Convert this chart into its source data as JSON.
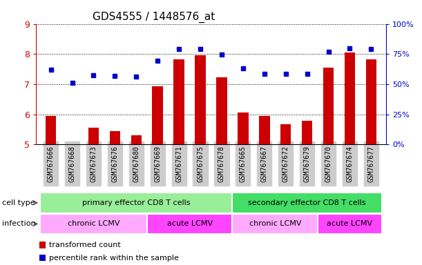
{
  "title": "GDS4555 / 1448576_at",
  "samples": [
    "GSM767666",
    "GSM767668",
    "GSM767673",
    "GSM767676",
    "GSM767680",
    "GSM767669",
    "GSM767671",
    "GSM767675",
    "GSM767678",
    "GSM767665",
    "GSM767667",
    "GSM767672",
    "GSM767679",
    "GSM767670",
    "GSM767674",
    "GSM767677"
  ],
  "red_values": [
    5.95,
    5.0,
    5.55,
    5.45,
    5.3,
    6.92,
    7.82,
    7.97,
    7.22,
    6.07,
    5.94,
    5.68,
    5.78,
    7.55,
    8.05,
    7.82
  ],
  "blue_values": [
    7.48,
    7.05,
    7.3,
    7.27,
    7.25,
    7.77,
    8.17,
    8.17,
    7.98,
    7.52,
    7.35,
    7.35,
    7.35,
    8.07,
    8.2,
    8.17
  ],
  "ylim_left": [
    5,
    9
  ],
  "ylim_right": [
    0,
    100
  ],
  "yticks_left": [
    5,
    6,
    7,
    8,
    9
  ],
  "ytick_right_vals": [
    0,
    25,
    50,
    75,
    100
  ],
  "cell_type_groups": [
    {
      "label": "primary effector CD8 T cells",
      "start": 0,
      "end": 8,
      "color": "#99EE99"
    },
    {
      "label": "secondary effector CD8 T cells",
      "start": 9,
      "end": 15,
      "color": "#44DD66"
    }
  ],
  "infection_groups": [
    {
      "label": "chronic LCMV",
      "start": 0,
      "end": 4,
      "color": "#FFAAFF"
    },
    {
      "label": "acute LCMV",
      "start": 5,
      "end": 8,
      "color": "#FF44FF"
    },
    {
      "label": "chronic LCMV",
      "start": 9,
      "end": 12,
      "color": "#FFAAFF"
    },
    {
      "label": "acute LCMV",
      "start": 13,
      "end": 15,
      "color": "#FF44FF"
    }
  ],
  "red_color": "#CC0000",
  "blue_color": "#0000CC",
  "bar_width": 0.5,
  "left_axis_color": "#CC0000",
  "right_axis_color": "#0000CC",
  "xtick_bg": "#CCCCCC"
}
